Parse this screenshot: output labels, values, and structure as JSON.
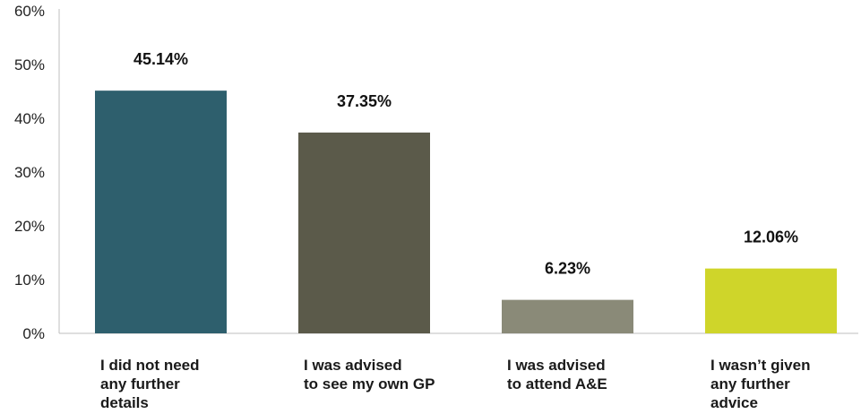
{
  "chart_data": {
    "type": "bar",
    "categories": [
      [
        "I did not need",
        "any further",
        "details"
      ],
      [
        "I was advised",
        "to see my own GP"
      ],
      [
        "I was advised",
        "to attend A&E"
      ],
      [
        "I wasn’t given",
        "any further",
        "advice"
      ]
    ],
    "values": [
      45.14,
      37.35,
      6.23,
      12.06
    ],
    "data_labels": [
      "45.14%",
      "37.35%",
      "6.23%",
      "12.06%"
    ],
    "colors": [
      "#2e5f6d",
      "#5b5a4a",
      "#8a8a78",
      "#cfd52a"
    ],
    "yticks": [
      "0%",
      "10%",
      "20%",
      "30%",
      "40%",
      "50%",
      "60%"
    ],
    "ylim": [
      0,
      60
    ],
    "grid": false,
    "legend": "none"
  }
}
